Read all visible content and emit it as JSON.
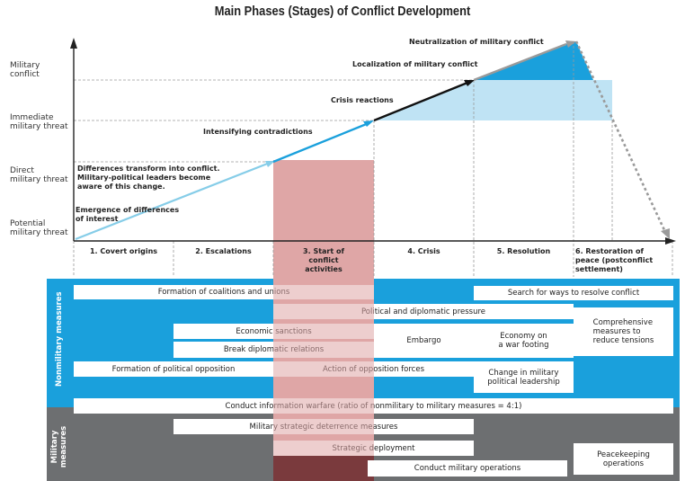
{
  "title": "Main Phases (Stages) of Conflict Development",
  "y_axis_levels": [
    {
      "label_line1": "Military",
      "label_line2": "conflict"
    },
    {
      "label_line1": "Immediate",
      "label_line2": "military threat"
    },
    {
      "label_line1": "Direct",
      "label_line2": "military threat"
    },
    {
      "label_line1": "Potential",
      "label_line2": "military threat"
    }
  ],
  "phases": [
    {
      "line1": "1. Covert origins",
      "line2": "",
      "line3": ""
    },
    {
      "line1": "2. Escalations",
      "line2": "",
      "line3": ""
    },
    {
      "line1": "3. Start of",
      "line2": "conflict",
      "line3": "activities"
    },
    {
      "line1": "4. Crisis",
      "line2": "",
      "line3": ""
    },
    {
      "line1": "5. Resolution",
      "line2": "",
      "line3": ""
    },
    {
      "line1": "6. Restoration of",
      "line2": "peace (postconflict",
      "line3": "settlement)"
    }
  ],
  "curve_annotations": {
    "emergence_line1": "Emergence of differences",
    "emergence_line2": "of interest",
    "transform_line1": "Differences transform into conflict.",
    "transform_line2": "Military-political leaders become",
    "transform_line3": "aware of this change.",
    "intensifying": "Intensifying contradictions",
    "crisis_reactions": "Crisis reactions",
    "localization": "Localization of military conflict",
    "neutralization": "Neutralization of military conflict"
  },
  "sections": {
    "nonmilitary_label": "Nonmilitary measures",
    "military_line1": "Military",
    "military_line2": "measures"
  },
  "measures": {
    "coalitions": "Formation of coalitions and unions",
    "search_resolve": "Search for ways to resolve conflict",
    "political_pressure": "Political and diplomatic pressure",
    "economic_sanctions": "Economic sanctions",
    "embargo": "Embargo",
    "economy_line1": "Economy on",
    "economy_line2": "a war footing",
    "comprehensive_line1": "Comprehensive",
    "comprehensive_line2": "measures to",
    "comprehensive_line3": "reduce tensions",
    "break_relations": "Break diplomatic relations",
    "political_opposition": "Formation of political opposition",
    "opposition_forces": "Action of opposition forces",
    "leadership_line1": "Change in military",
    "leadership_line2": "political leadership",
    "information_warfare": "Conduct information warfare (ratio of nonmilitary to military measures = 4:1)",
    "deterrence": "Military strategic deterrence measures",
    "deployment": "Strategic deployment",
    "military_operations": "Conduct military operations",
    "peacekeeping_line1": "Peacekeeping",
    "peacekeeping_line2": "operations"
  },
  "colors": {
    "blue": "#1aa0dc",
    "light_blue": "#bfe3f4",
    "gray": "#6d6f71",
    "pink_band": "#dfa6a6",
    "pink_band_dark": "#7a3a3d",
    "light_line": "#86cde8",
    "dark_line": "#111111",
    "arrow_gray": "#9a9a9a"
  }
}
